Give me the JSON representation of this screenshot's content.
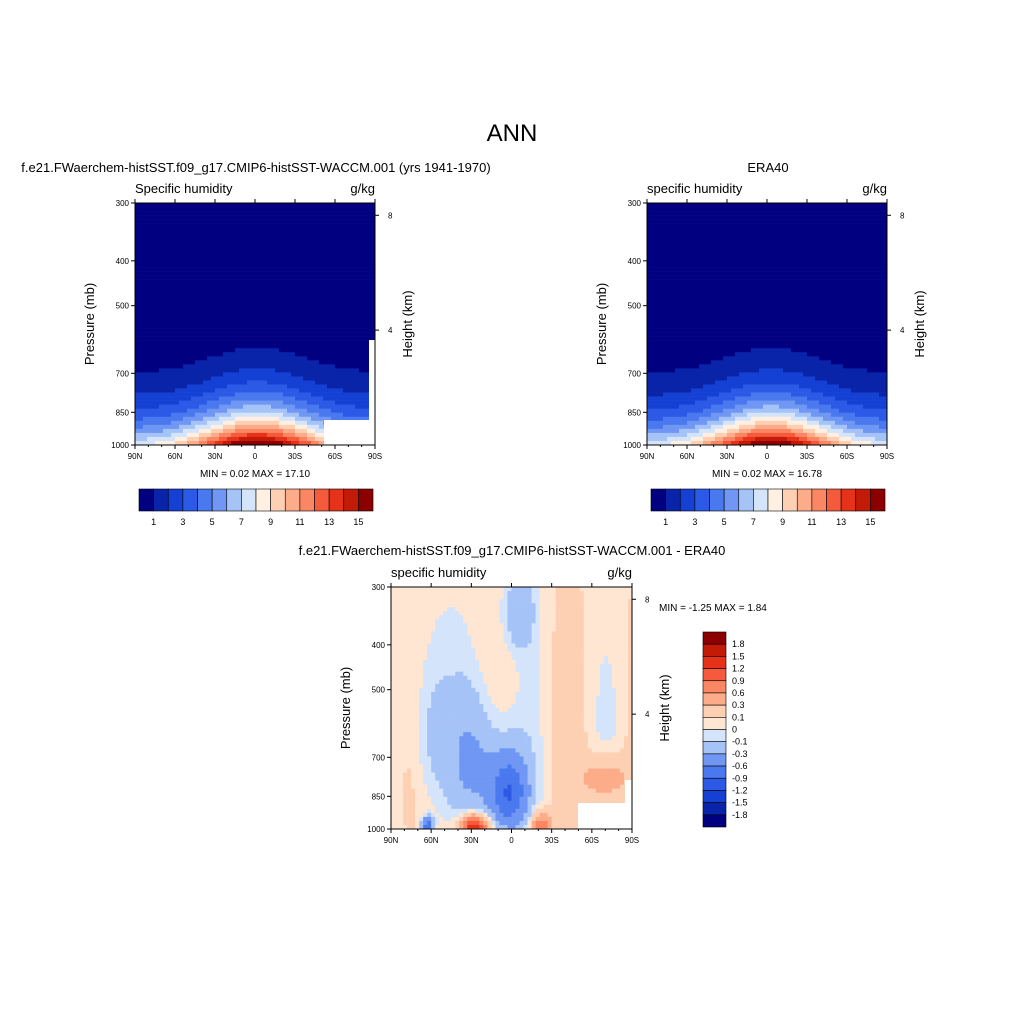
{
  "figure": {
    "title": "ANN",
    "colors": {
      "abs_scale": [
        "#000080",
        "#0a24a9",
        "#1540d4",
        "#2c5ae6",
        "#4a78ee",
        "#6f97f3",
        "#a6c3f7",
        "#d4e4fb",
        "#fff0e2",
        "#fed0b3",
        "#fcac89",
        "#fa8664",
        "#f55a3c",
        "#e63219",
        "#c41a08",
        "#8c0000"
      ],
      "diff_scale": [
        "#000080",
        "#0a24a9",
        "#1540d4",
        "#2c5ae6",
        "#4a78ee",
        "#6f97f3",
        "#a6c3f7",
        "#d4e4fb",
        "#ffe6d2",
        "#fed0b3",
        "#fcac89",
        "#fa8664",
        "#f55a3c",
        "#e63219",
        "#c41a08",
        "#8c0000"
      ]
    }
  },
  "chart_data": [
    {
      "type": "heatmap",
      "title": "f.e21.FWaerchem-histSST.f09_g17.CMIP6-histSST-WACCM.001 (yrs 1941-1970)",
      "left_label": "Specific humidity",
      "units": "g/kg",
      "ylabel": "Pressure (mb)",
      "ylabel_right": "Height (km)",
      "x_ticks": [
        "90N",
        "60N",
        "30N",
        "0",
        "30S",
        "60S",
        "90S"
      ],
      "y_ticks": [
        300,
        400,
        500,
        700,
        850,
        1000
      ],
      "y_right_ticks": [
        8,
        4
      ],
      "ylim": [
        1000,
        300
      ],
      "min_max_text": "MIN =   0.02  MAX =  17.10",
      "min": 0.02,
      "max": 17.1,
      "peak_lat": -2,
      "colorbar_labels": [
        "1",
        "3",
        "5",
        "7",
        "9",
        "11",
        "13",
        "15"
      ]
    },
    {
      "type": "heatmap",
      "title": "ERA40",
      "left_label": "specific humidity",
      "units": "g/kg",
      "ylabel": "Pressure (mb)",
      "ylabel_right": "Height (km)",
      "x_ticks": [
        "90N",
        "60N",
        "30N",
        "0",
        "30S",
        "60S",
        "90S"
      ],
      "y_ticks": [
        300,
        400,
        500,
        700,
        850,
        1000
      ],
      "y_right_ticks": [
        8,
        4
      ],
      "ylim": [
        1000,
        300
      ],
      "min_max_text": "MIN =   0.02  MAX =  16.78",
      "min": 0.02,
      "max": 16.78,
      "peak_lat": -3,
      "colorbar_labels": [
        "1",
        "3",
        "5",
        "7",
        "9",
        "11",
        "13",
        "15"
      ]
    },
    {
      "type": "heatmap",
      "title": "f.e21.FWaerchem-histSST.f09_g17.CMIP6-histSST-WACCM.001 - ERA40",
      "left_label": "specific humidity",
      "units": "g/kg",
      "ylabel": "Pressure (mb)",
      "ylabel_right": "Height (km)",
      "x_ticks": [
        "90N",
        "60N",
        "30N",
        "0",
        "30S",
        "60S",
        "90S"
      ],
      "y_ticks": [
        300,
        400,
        500,
        700,
        850,
        1000
      ],
      "y_right_ticks": [
        8,
        4
      ],
      "ylim": [
        1000,
        300
      ],
      "min_max_text": "MIN =  -1.25  MAX =   1.84",
      "min": -1.25,
      "max": 1.84,
      "colorbar_labels": [
        "1.8",
        "1.5",
        "1.2",
        "0.9",
        "0.6",
        "0.3",
        "0.1",
        "0",
        "-0.1",
        "-0.3",
        "-0.6",
        "-0.9",
        "-1.2",
        "-1.5",
        "-1.8"
      ]
    }
  ]
}
